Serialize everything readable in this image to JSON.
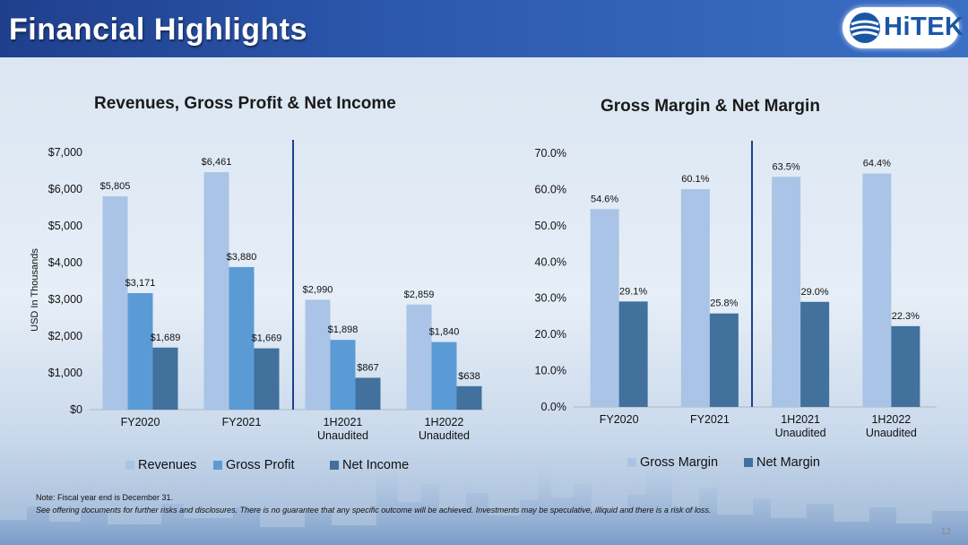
{
  "header": {
    "title": "Financial Highlights",
    "logo_text": "HiTEK"
  },
  "colors": {
    "revenues": "#a9c4e6",
    "gross_profit": "#5b9bd5",
    "net_income": "#41719c",
    "gross_margin": "#a9c4e6",
    "net_margin": "#41719c",
    "divider": "#1f3f8c"
  },
  "chart_data": [
    {
      "type": "bar",
      "title": "Revenues, Gross Profit & Net Income",
      "ylabel": "USD In Thousands",
      "xlabel": "",
      "ylim": [
        0,
        7000
      ],
      "yticks": [
        0,
        1000,
        2000,
        3000,
        4000,
        5000,
        6000,
        7000
      ],
      "ytick_labels": [
        "$0",
        "$1,000",
        "$2,000",
        "$3,000",
        "$4,000",
        "$5,000",
        "$6,000",
        "$7,000"
      ],
      "categories": [
        [
          "FY2020"
        ],
        [
          "FY2021"
        ],
        [
          "1H2021",
          "Unaudited"
        ],
        [
          "1H2022",
          "Unaudited"
        ]
      ],
      "series": [
        {
          "name": "Revenues",
          "color_key": "revenues",
          "values": [
            5805,
            6461,
            2990,
            2859
          ],
          "labels": [
            "$5,805",
            "$6,461",
            "$2,990",
            "$2,859"
          ]
        },
        {
          "name": "Gross Profit",
          "color_key": "gross_profit",
          "values": [
            3171,
            3880,
            1898,
            1840
          ],
          "labels": [
            "$3,171",
            "$3,880",
            "$1,898",
            "$1,840"
          ]
        },
        {
          "name": "Net Income",
          "color_key": "net_income",
          "values": [
            1689,
            1669,
            867,
            638
          ],
          "labels": [
            "$1,689",
            "$1,669",
            "$867",
            "$638"
          ]
        }
      ],
      "grid": false,
      "legend_position": "bottom"
    },
    {
      "type": "bar",
      "title": "Gross Margin & Net Margin",
      "ylabel": "",
      "xlabel": "",
      "ylim": [
        0,
        70
      ],
      "yticks": [
        0,
        10,
        20,
        30,
        40,
        50,
        60,
        70
      ],
      "ytick_labels": [
        "0.0%",
        "10.0%",
        "20.0%",
        "30.0%",
        "40.0%",
        "50.0%",
        "60.0%",
        "70.0%"
      ],
      "categories": [
        [
          "FY2020"
        ],
        [
          "FY2021"
        ],
        [
          "1H2021",
          "Unaudited"
        ],
        [
          "1H2022",
          "Unaudited"
        ]
      ],
      "series": [
        {
          "name": "Gross Margin",
          "color_key": "gross_margin",
          "values": [
            54.6,
            60.1,
            63.5,
            64.4
          ],
          "labels": [
            "54.6%",
            "60.1%",
            "63.5%",
            "64.4%"
          ]
        },
        {
          "name": "Net Margin",
          "color_key": "net_margin",
          "values": [
            29.1,
            25.8,
            29.0,
            22.3
          ],
          "labels": [
            "29.1%",
            "25.8%",
            "29.0%",
            "22.3%"
          ]
        }
      ],
      "grid": false,
      "legend_position": "bottom"
    }
  ],
  "footnotes": {
    "line1": "Note: Fiscal year end is December 31.",
    "line2": "See offering documents for further risks and disclosures. There is no guarantee that any specific outcome will be achieved. Investments may be speculative, illiquid and there is a risk of loss."
  },
  "page_number": "12"
}
